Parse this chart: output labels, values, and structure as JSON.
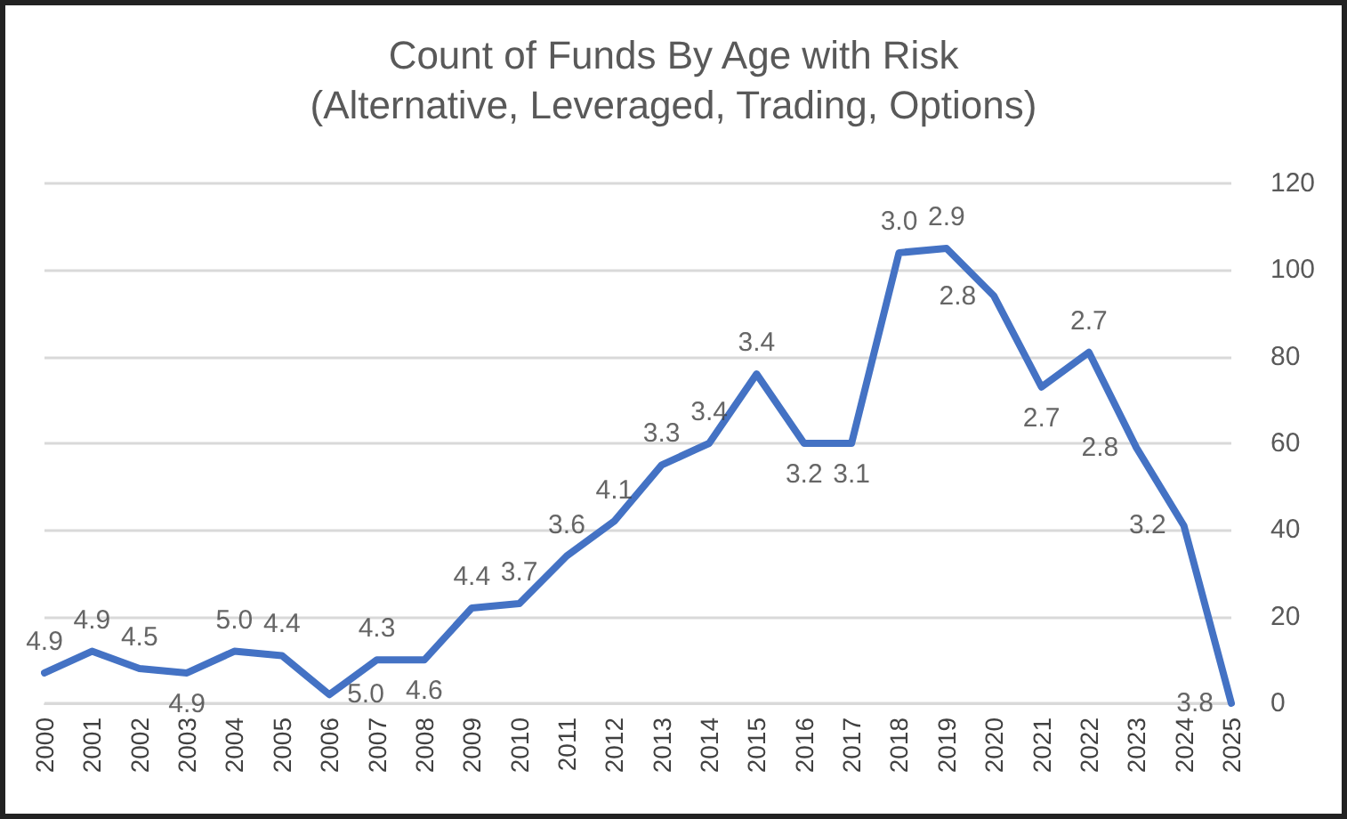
{
  "chart_data": {
    "type": "line",
    "title": "Count of Funds By Age with Risk",
    "subtitle": "(Alternative, Leveraged, Trading, Options)",
    "categories": [
      "2000",
      "2001",
      "2002",
      "2003",
      "2004",
      "2005",
      "2006",
      "2007",
      "2008",
      "2009",
      "2010",
      "2011",
      "2012",
      "2013",
      "2014",
      "2015",
      "2016",
      "2017",
      "2018",
      "2019",
      "2020",
      "2021",
      "2022",
      "2023",
      "2024",
      "2025"
    ],
    "series": [
      {
        "color": "#4472c4",
        "values": [
          7,
          12,
          8,
          7,
          12,
          11,
          2,
          10,
          10,
          22,
          23,
          34,
          42,
          55,
          60,
          76,
          60,
          60,
          104,
          105,
          94,
          73,
          81,
          59,
          41,
          0
        ]
      }
    ],
    "annotations": [
      {
        "text": "4.9",
        "x": "2000",
        "y": 7
      },
      {
        "text": "4.9",
        "x": "2001",
        "y": 12
      },
      {
        "text": "4.5",
        "x": "2002",
        "y": 8
      },
      {
        "text": "4.9",
        "x": "2003",
        "y": 7
      },
      {
        "text": "5.0",
        "x": "2004",
        "y": 12
      },
      {
        "text": "4.4",
        "x": "2005",
        "y": 11
      },
      {
        "text": "5.0",
        "x": "2006",
        "y": 2
      },
      {
        "text": "4.3",
        "x": "2007",
        "y": 10
      },
      {
        "text": "4.6",
        "x": "2008",
        "y": 10
      },
      {
        "text": "4.4",
        "x": "2009",
        "y": 22
      },
      {
        "text": "3.7",
        "x": "2010",
        "y": 23
      },
      {
        "text": "3.6",
        "x": "2011",
        "y": 34
      },
      {
        "text": "4.1",
        "x": "2012",
        "y": 42
      },
      {
        "text": "3.3",
        "x": "2013",
        "y": 55
      },
      {
        "text": "3.4",
        "x": "2014",
        "y": 60
      },
      {
        "text": "3.4",
        "x": "2015",
        "y": 76
      },
      {
        "text": "3.2",
        "x": "2016",
        "y": 60
      },
      {
        "text": "3.1",
        "x": "2017",
        "y": 60
      },
      {
        "text": "3.0",
        "x": "2018",
        "y": 104
      },
      {
        "text": "2.9",
        "x": "2019",
        "y": 105
      },
      {
        "text": "2.8",
        "x": "2020",
        "y": 94
      },
      {
        "text": "2.7",
        "x": "2021",
        "y": 73
      },
      {
        "text": "2.7",
        "x": "2022",
        "y": 81
      },
      {
        "text": "2.8",
        "x": "2023",
        "y": 59
      },
      {
        "text": "3.2",
        "x": "2024",
        "y": 41
      },
      {
        "text": "3.8",
        "x": "2025",
        "y": 0
      }
    ],
    "ylim": [
      0,
      120
    ],
    "yticks": [
      0,
      20,
      40,
      60,
      80,
      100,
      120
    ],
    "grid": "y",
    "marker": "none",
    "line_style": "solid"
  }
}
